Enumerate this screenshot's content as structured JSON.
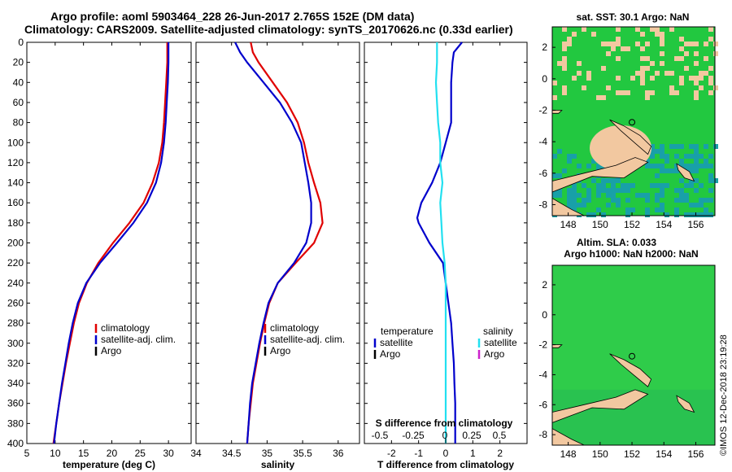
{
  "header": {
    "line1": "Argo profile: aoml 5903464_228 26-Jun-2017 2.765S 152E (DM data)",
    "line2": "Climatology: CARS2009. Satellite-adjusted climatology: synTS_20170626.nc (0.33d earlier)"
  },
  "colors": {
    "climatology": "#e00000",
    "satellite": "#0000cc",
    "argo": "#000000",
    "sal_satellite": "#22e0f0",
    "sal_argo": "#cc22cc",
    "land": "#f2c8a0",
    "ocean": "#22c840",
    "ocean_dark": "#18a0a8"
  },
  "chart_data": [
    {
      "type": "line",
      "xlabel": "temperature (deg C)",
      "ylabel": "",
      "xlim": [
        5,
        34
      ],
      "ylim": [
        0,
        400
      ],
      "x_ticks": [
        5,
        10,
        15,
        20,
        25,
        30
      ],
      "y_ticks": [
        0,
        20,
        40,
        60,
        80,
        100,
        120,
        140,
        160,
        180,
        200,
        220,
        240,
        260,
        280,
        300,
        320,
        340,
        360,
        380,
        400
      ],
      "legend": [
        "climatology",
        "satellite-adj. clim.",
        "Argo"
      ],
      "legend_position": "bottom-right",
      "series": [
        {
          "name": "climatology",
          "color": "climatology",
          "depth": [
            0,
            10,
            20,
            40,
            60,
            80,
            100,
            120,
            140,
            160,
            180,
            200,
            220,
            240,
            260,
            280,
            300,
            320,
            340,
            360,
            380,
            400
          ],
          "values": [
            29.8,
            29.8,
            29.8,
            29.6,
            29.4,
            29.2,
            28.9,
            28.3,
            27.2,
            25.6,
            23.1,
            20.2,
            17.6,
            15.6,
            14.2,
            13.3,
            12.6,
            11.9,
            11.3,
            10.7,
            10.2,
            9.7
          ]
        },
        {
          "name": "satellite-adj. clim.",
          "color": "satellite",
          "depth": [
            0,
            10,
            20,
            40,
            60,
            80,
            100,
            120,
            140,
            160,
            180,
            200,
            220,
            240,
            260,
            280,
            300,
            320,
            340,
            360,
            380,
            400
          ],
          "values": [
            30.0,
            30.0,
            30.0,
            29.9,
            29.7,
            29.5,
            29.2,
            28.7,
            27.8,
            26.2,
            23.8,
            20.9,
            17.9,
            15.5,
            14.0,
            13.1,
            12.4,
            11.8,
            11.2,
            10.7,
            10.2,
            9.8
          ]
        }
      ]
    },
    {
      "type": "line",
      "xlabel": "salinity",
      "xlim": [
        34,
        36.3
      ],
      "ylim": [
        0,
        400
      ],
      "x_ticks": [
        34,
        34.5,
        35,
        35.5,
        36
      ],
      "legend": [
        "climatology",
        "satellite-adj. clim.",
        "Argo"
      ],
      "legend_position": "bottom-right",
      "series": [
        {
          "name": "climatology",
          "color": "climatology",
          "depth": [
            0,
            10,
            20,
            40,
            60,
            80,
            100,
            120,
            140,
            160,
            180,
            200,
            220,
            240,
            260,
            280,
            300,
            320,
            340,
            360,
            380,
            400
          ],
          "values": [
            34.77,
            34.8,
            34.88,
            35.08,
            35.28,
            35.43,
            35.52,
            35.58,
            35.66,
            35.75,
            35.78,
            35.66,
            35.4,
            35.15,
            35.03,
            34.96,
            34.9,
            34.85,
            34.8,
            34.77,
            34.74,
            34.72
          ]
        },
        {
          "name": "satellite-adj. clim.",
          "color": "satellite",
          "depth": [
            0,
            10,
            20,
            40,
            60,
            80,
            100,
            120,
            140,
            160,
            180,
            200,
            220,
            240,
            260,
            280,
            300,
            320,
            340,
            360,
            380,
            400
          ],
          "values": [
            34.55,
            34.62,
            34.72,
            34.95,
            35.18,
            35.35,
            35.48,
            35.53,
            35.58,
            35.62,
            35.62,
            35.55,
            35.38,
            35.15,
            35.02,
            34.95,
            34.89,
            34.84,
            34.79,
            34.76,
            34.74,
            34.72
          ]
        }
      ]
    },
    {
      "type": "line",
      "xlabel": "T difference from climatology",
      "top_xlabel": "S difference from climatology",
      "xlim": [
        -3,
        3
      ],
      "ylim": [
        0,
        400
      ],
      "x_ticks": [
        -2,
        -1,
        0,
        1,
        2
      ],
      "top_ticks": [
        "-0.5",
        "-0.25",
        "0",
        "0.25",
        "0.5"
      ],
      "legend_left_title": "temperature",
      "legend_left": [
        "satellite",
        "Argo"
      ],
      "legend_right_title": "salinity",
      "legend_right": [
        "satellite",
        "Argo"
      ],
      "series": [
        {
          "name": "temperature satellite",
          "color": "satellite",
          "depth": [
            0,
            10,
            20,
            40,
            60,
            80,
            100,
            120,
            140,
            160,
            175,
            180,
            200,
            220,
            240,
            260,
            280,
            300,
            320,
            340,
            360,
            380,
            400
          ],
          "values": [
            0.6,
            0.3,
            0.25,
            0.2,
            0.2,
            0.2,
            0.0,
            -0.2,
            -0.5,
            -0.9,
            -1.05,
            -1.0,
            -0.6,
            -0.1,
            0.0,
            0.1,
            0.2,
            0.25,
            0.3,
            0.32,
            0.35,
            0.35,
            0.35
          ]
        },
        {
          "name": "salinity satellite",
          "color": "sal_satellite",
          "depth": [
            0,
            20,
            40,
            60,
            80,
            100,
            120,
            140,
            160,
            180,
            200,
            220,
            240,
            260,
            280,
            300,
            320,
            340,
            360,
            380,
            400
          ],
          "values": [
            -0.08,
            -0.08,
            -0.09,
            -0.08,
            -0.07,
            -0.05,
            -0.05,
            -0.03,
            -0.05,
            -0.04,
            -0.03,
            -0.01,
            0.0,
            0.0,
            0.0,
            0.0,
            0.0,
            0.0,
            0.0,
            0.0,
            0.0
          ]
        }
      ]
    }
  ],
  "maps": {
    "sst": {
      "title": "sat. SST: 30.1 Argo: NaN",
      "x_ticks": [
        "148",
        "150",
        "152",
        "154",
        "156"
      ],
      "y_ticks": [
        "2",
        "0",
        "-2",
        "-4",
        "-6",
        "-8"
      ]
    },
    "sla": {
      "title_line1": "Altim. SLA: 0.033",
      "title_line2": "Argo h1000: NaN h2000: NaN",
      "x_ticks": [
        "148",
        "150",
        "152",
        "154",
        "156"
      ],
      "y_ticks": [
        "2",
        "0",
        "-2",
        "-4",
        "-6",
        "-8"
      ]
    }
  },
  "footer": {
    "stamp": "©IMOS 12-Dec-2018 23:19:28"
  }
}
